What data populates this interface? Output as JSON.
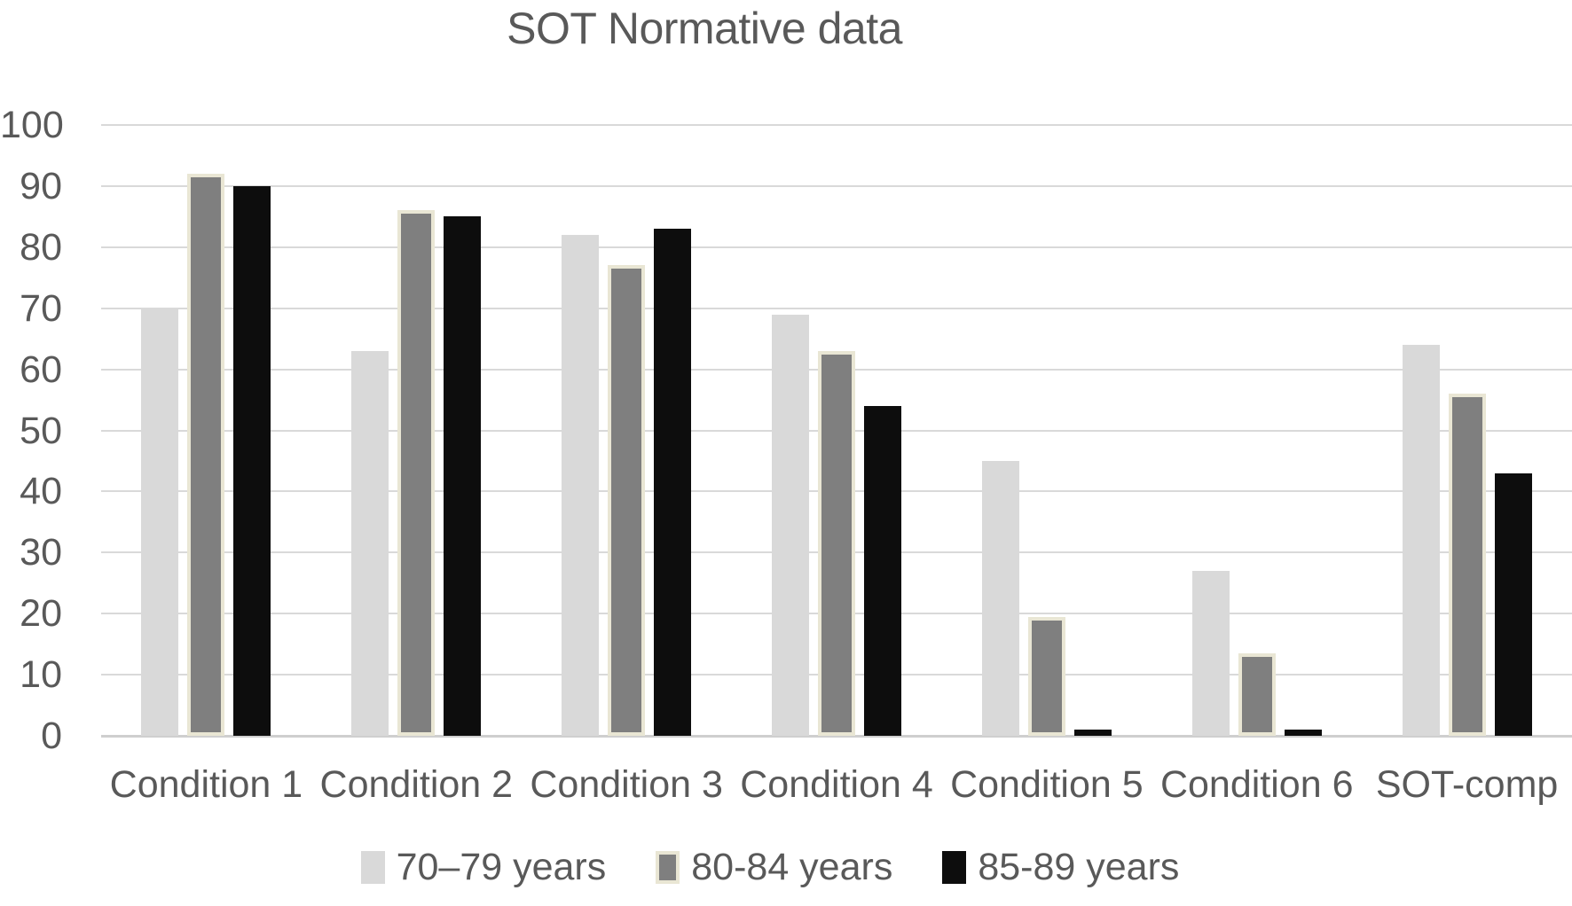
{
  "title": "SOT Normative data",
  "colors": {
    "text": "#595959",
    "gridline": "#d9d9d9",
    "axis_line": "#cfcfcf",
    "background": "#ffffff"
  },
  "chart_data": {
    "type": "bar",
    "title": "SOT Normative data",
    "xlabel": "",
    "ylabel": "",
    "ylim": [
      0,
      100
    ],
    "yticks": [
      100,
      90,
      80,
      70,
      60,
      50,
      40,
      30,
      20,
      10,
      0
    ],
    "grid": "horizontal",
    "legend_position": "bottom",
    "categories": [
      "Condition 1",
      "Condition 2",
      "Condition 3",
      "Condition 4",
      "Condition 5",
      "Condition 6",
      "SOT-comp"
    ],
    "series": [
      {
        "name": "70–79 years",
        "color": "#d9d9d9",
        "border_color": "none",
        "values": [
          70,
          63,
          82,
          69,
          45,
          27,
          64
        ]
      },
      {
        "name": "80-84 years",
        "color": "#7f7f7f",
        "border_color": "#e9e6d4",
        "values": [
          92,
          86,
          77,
          63,
          19.5,
          13.5,
          56
        ]
      },
      {
        "name": "85-89 years",
        "color": "#0d0d0d",
        "border_color": "none",
        "values": [
          90,
          85,
          83,
          54,
          1,
          1,
          43
        ]
      }
    ]
  }
}
